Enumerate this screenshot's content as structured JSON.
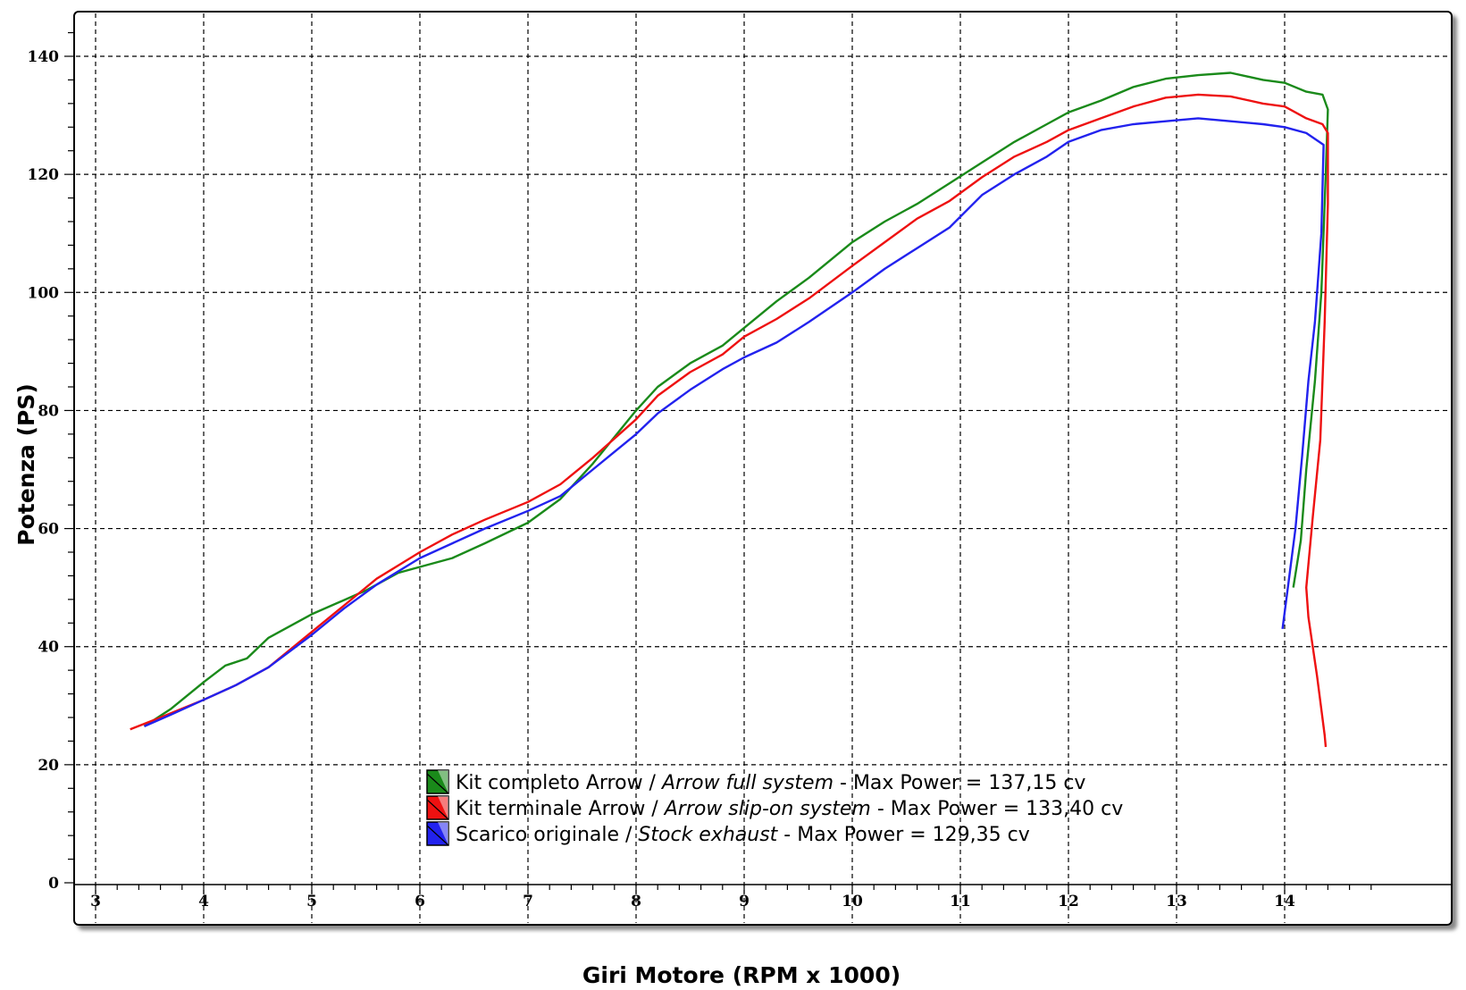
{
  "chart_data": {
    "type": "line",
    "title": "",
    "xlabel": "Giri Motore (RPM x 1000)",
    "ylabel": "Potenza (PS)",
    "xlim": [
      2.8,
      14.95
    ],
    "ylim": [
      0,
      145
    ],
    "xticks": [
      "3",
      "4",
      "5",
      "6",
      "7",
      "8",
      "9",
      "10",
      "11",
      "12",
      "13",
      "14"
    ],
    "yticks": [
      "0",
      "20",
      "40",
      "60",
      "80",
      "100",
      "120",
      "140"
    ],
    "grid": true,
    "legend_position": "bottom-center",
    "series": [
      {
        "name": "Kit completo Arrow",
        "name_en": "Arrow full system",
        "max_label": "Max Power = 137,15 cv",
        "color": "#1a8a1a",
        "points": [
          [
            3.45,
            26.5
          ],
          [
            3.7,
            29.5
          ],
          [
            4.0,
            34.0
          ],
          [
            4.2,
            36.8
          ],
          [
            4.4,
            38.0
          ],
          [
            4.6,
            41.5
          ],
          [
            5.0,
            45.5
          ],
          [
            5.5,
            49.5
          ],
          [
            5.8,
            52.5
          ],
          [
            6.0,
            53.5
          ],
          [
            6.3,
            55.0
          ],
          [
            6.6,
            57.5
          ],
          [
            7.0,
            61.0
          ],
          [
            7.3,
            65.0
          ],
          [
            7.6,
            71.0
          ],
          [
            8.0,
            80.0
          ],
          [
            8.2,
            84.0
          ],
          [
            8.5,
            88.0
          ],
          [
            8.8,
            91.0
          ],
          [
            9.0,
            94.0
          ],
          [
            9.3,
            98.5
          ],
          [
            9.6,
            102.5
          ],
          [
            10.0,
            108.5
          ],
          [
            10.3,
            112.0
          ],
          [
            10.6,
            115.0
          ],
          [
            10.9,
            118.5
          ],
          [
            11.2,
            122.0
          ],
          [
            11.5,
            125.5
          ],
          [
            11.8,
            128.5
          ],
          [
            12.0,
            130.5
          ],
          [
            12.3,
            132.5
          ],
          [
            12.6,
            134.8
          ],
          [
            12.9,
            136.2
          ],
          [
            13.2,
            136.8
          ],
          [
            13.5,
            137.2
          ],
          [
            13.8,
            136.0
          ],
          [
            14.0,
            135.5
          ],
          [
            14.2,
            134.0
          ],
          [
            14.35,
            133.5
          ],
          [
            14.4,
            131.0
          ],
          [
            14.38,
            120.0
          ],
          [
            14.34,
            100.0
          ],
          [
            14.28,
            85.0
          ],
          [
            14.2,
            70.0
          ],
          [
            14.15,
            58.0
          ],
          [
            14.08,
            50.0
          ]
        ]
      },
      {
        "name": "Kit terminale Arrow",
        "name_en": "Arrow slip-on system",
        "max_label": "Max Power = 133,40 cv",
        "color": "#ee1111",
        "points": [
          [
            3.32,
            26.0
          ],
          [
            3.6,
            28.0
          ],
          [
            4.0,
            31.0
          ],
          [
            4.3,
            33.5
          ],
          [
            4.6,
            36.5
          ],
          [
            5.0,
            42.5
          ],
          [
            5.3,
            47.0
          ],
          [
            5.6,
            51.5
          ],
          [
            6.0,
            56.0
          ],
          [
            6.3,
            59.0
          ],
          [
            6.6,
            61.5
          ],
          [
            7.0,
            64.5
          ],
          [
            7.3,
            67.5
          ],
          [
            7.6,
            72.0
          ],
          [
            8.0,
            78.5
          ],
          [
            8.2,
            82.5
          ],
          [
            8.5,
            86.5
          ],
          [
            8.8,
            89.5
          ],
          [
            9.0,
            92.5
          ],
          [
            9.3,
            95.5
          ],
          [
            9.6,
            99.0
          ],
          [
            10.0,
            104.5
          ],
          [
            10.3,
            108.5
          ],
          [
            10.6,
            112.5
          ],
          [
            10.9,
            115.5
          ],
          [
            11.2,
            119.5
          ],
          [
            11.5,
            123.0
          ],
          [
            11.8,
            125.5
          ],
          [
            12.0,
            127.5
          ],
          [
            12.3,
            129.5
          ],
          [
            12.6,
            131.5
          ],
          [
            12.9,
            133.0
          ],
          [
            13.2,
            133.5
          ],
          [
            13.5,
            133.2
          ],
          [
            13.8,
            132.0
          ],
          [
            14.0,
            131.5
          ],
          [
            14.2,
            129.5
          ],
          [
            14.35,
            128.5
          ],
          [
            14.4,
            127.0
          ],
          [
            14.4,
            115.0
          ],
          [
            14.37,
            95.0
          ],
          [
            14.33,
            75.0
          ],
          [
            14.26,
            62.0
          ],
          [
            14.2,
            50.0
          ],
          [
            14.22,
            45.0
          ],
          [
            14.3,
            35.0
          ],
          [
            14.37,
            25.0
          ],
          [
            14.38,
            23.0
          ]
        ]
      },
      {
        "name": "Scarico originale",
        "name_en": "Stock exhaust",
        "max_label": "Max Power = 129,35 cv",
        "color": "#2222ee",
        "points": [
          [
            3.45,
            26.5
          ],
          [
            3.7,
            28.5
          ],
          [
            4.0,
            31.0
          ],
          [
            4.3,
            33.5
          ],
          [
            4.6,
            36.5
          ],
          [
            5.0,
            42.0
          ],
          [
            5.3,
            46.5
          ],
          [
            5.6,
            50.5
          ],
          [
            6.0,
            55.0
          ],
          [
            6.3,
            57.5
          ],
          [
            6.6,
            60.0
          ],
          [
            7.0,
            63.0
          ],
          [
            7.3,
            65.5
          ],
          [
            7.6,
            70.0
          ],
          [
            8.0,
            76.0
          ],
          [
            8.2,
            79.5
          ],
          [
            8.5,
            83.5
          ],
          [
            8.8,
            87.0
          ],
          [
            9.0,
            89.0
          ],
          [
            9.3,
            91.5
          ],
          [
            9.6,
            95.0
          ],
          [
            10.0,
            100.0
          ],
          [
            10.3,
            104.0
          ],
          [
            10.6,
            107.5
          ],
          [
            10.9,
            111.0
          ],
          [
            11.2,
            116.5
          ],
          [
            11.5,
            120.0
          ],
          [
            11.8,
            123.0
          ],
          [
            12.0,
            125.5
          ],
          [
            12.3,
            127.5
          ],
          [
            12.6,
            128.5
          ],
          [
            12.9,
            129.0
          ],
          [
            13.2,
            129.5
          ],
          [
            13.5,
            129.0
          ],
          [
            13.8,
            128.5
          ],
          [
            14.0,
            128.0
          ],
          [
            14.2,
            127.0
          ],
          [
            14.32,
            125.5
          ],
          [
            14.36,
            125.0
          ],
          [
            14.34,
            110.0
          ],
          [
            14.28,
            95.0
          ],
          [
            14.22,
            85.0
          ],
          [
            14.16,
            72.0
          ],
          [
            14.1,
            60.0
          ],
          [
            14.03,
            50.0
          ],
          [
            13.98,
            43.0
          ]
        ]
      }
    ]
  },
  "legend": {
    "separator": "/",
    "dash": "-"
  }
}
